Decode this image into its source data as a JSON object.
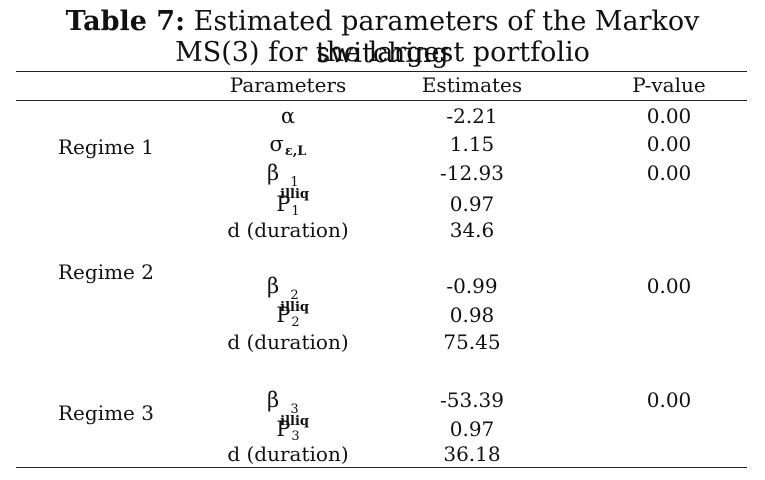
{
  "title": {
    "label": "Table 7:",
    "text_line1": " Estimated parameters of the Markov switching",
    "text_line2": "MS(3) for the largest portfolio"
  },
  "headers": {
    "parameters": "Parameters",
    "estimates": "Estimates",
    "pvalue": "P-value"
  },
  "regimes": [
    {
      "label": "Regime 1"
    },
    {
      "label": "Regime 2"
    },
    {
      "label": "Regime 3"
    }
  ],
  "rows": [
    {
      "param": "α",
      "estimate": "-2.21",
      "pvalue": "0.00"
    },
    {
      "param": "σ",
      "param_sub": "ε,L",
      "estimate": "1.15",
      "pvalue": "0.00"
    },
    {
      "param": "β",
      "param_sup": "1",
      "param_sub": "illiq",
      "estimate": "-12.93",
      "pvalue": "0.00"
    },
    {
      "param": "P",
      "param_sub": "1",
      "estimate": "0.97",
      "pvalue": ""
    },
    {
      "param": "d (duration)",
      "estimate": "34.6",
      "pvalue": ""
    },
    {
      "param": "β",
      "param_sup": "2",
      "param_sub": "illiq",
      "estimate": "-0.99",
      "pvalue": "0.00"
    },
    {
      "param": "P",
      "param_sub": "2",
      "estimate": "0.98",
      "pvalue": ""
    },
    {
      "param": "d (duration)",
      "estimate": "75.45",
      "pvalue": ""
    },
    {
      "param": "β",
      "param_sup": "3",
      "param_sub": "illiq",
      "estimate": "-53.39",
      "pvalue": "0.00"
    },
    {
      "param": "P",
      "param_sub": "3",
      "estimate": "0.97",
      "pvalue": ""
    },
    {
      "param": "d (duration)",
      "estimate": "36.18",
      "pvalue": ""
    }
  ]
}
